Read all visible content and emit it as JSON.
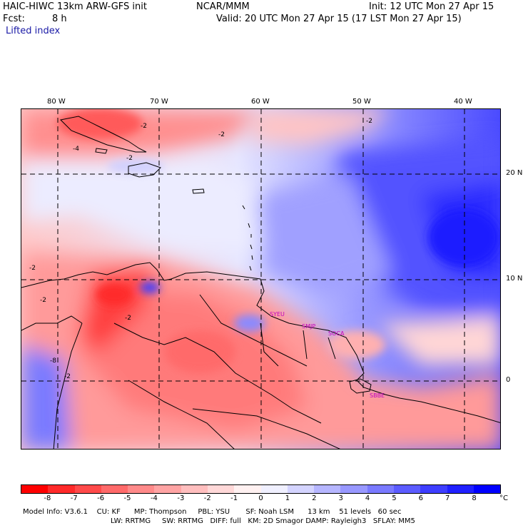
{
  "header": {
    "model": "HAIC-HIWC 13km ARW-GFS init",
    "org": "NCAR/MMM",
    "init": "Init: 12 UTC Mon 27 Apr 15",
    "fcst_label": "Fcst:",
    "fcst_value": "8 h",
    "valid": "Valid: 20 UTC Mon 27 Apr 15 (17 LST Mon 27 Apr 15)",
    "field": "Lifted index"
  },
  "map": {
    "lon_labels": [
      "80 W",
      "70 W",
      "60 W",
      "50 W",
      "40 W"
    ],
    "lat_labels": [
      "20 N",
      "10 N",
      "0"
    ],
    "stations": [
      "SYEU",
      "SMJP",
      "SOCA",
      "SBBE"
    ],
    "contour_labels": [
      "-2",
      "-2",
      "-2",
      "-4",
      "-2",
      "-2",
      "-2",
      "-2",
      "-8",
      "-2"
    ]
  },
  "colorbar": {
    "ticks": [
      "-8",
      "-7",
      "-6",
      "-5",
      "-4",
      "-3",
      "-2",
      "-1",
      "0",
      "1",
      "2",
      "3",
      "4",
      "5",
      "6",
      "7",
      "8"
    ],
    "unit": "°C",
    "colors": [
      "#ff0000",
      "#ff2a2a",
      "#ff4a4a",
      "#ff6a6a",
      "#ff8a8a",
      "#ffa4a4",
      "#ffbebe",
      "#ffd8d8",
      "#fff1f1",
      "#f0f0ff",
      "#d4d4ff",
      "#b6b6ff",
      "#9898ff",
      "#7a7aff",
      "#5c5cff",
      "#3e3eff",
      "#2020ff",
      "#0000ff"
    ]
  },
  "footer": {
    "line1": "Model Info: V3.6.1    CU: KF      MP: Thompson     PBL: YSU       SF: Noah LSM      13 km    51 levels   60 sec",
    "line2": "LW: RRTMG     SW: RRTMG   DIFF: full   KM: 2D Smagor DAMP: Rayleigh3   SFLAY: MM5"
  }
}
